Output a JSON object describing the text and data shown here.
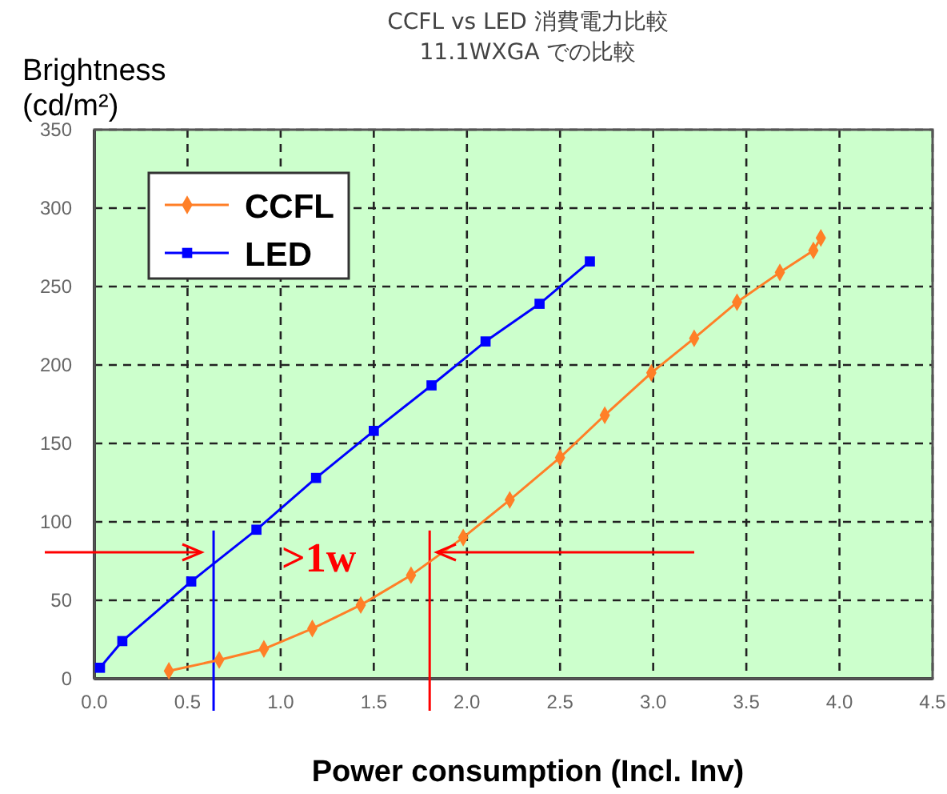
{
  "chart_data": {
    "type": "line",
    "title": "CCFL vs LED 消費電力比較",
    "subtitle": "11.1WXGA での比較",
    "xlabel": "Power consumption (Incl. Inv)",
    "ylabel": "Brightness (cd/m²)",
    "xlim": [
      0,
      4.5
    ],
    "ylim": [
      0,
      350
    ],
    "xticks": [
      {
        "value": 0,
        "label": "0.0"
      },
      {
        "value": 0.5,
        "label": "0.5"
      },
      {
        "value": 1,
        "label": "1.0"
      },
      {
        "value": 1.5,
        "label": "1.5"
      },
      {
        "value": 2,
        "label": "2.0"
      },
      {
        "value": 2.5,
        "label": "2.5"
      },
      {
        "value": 3,
        "label": "3.0"
      },
      {
        "value": 3.5,
        "label": "3.5"
      },
      {
        "value": 4,
        "label": "4.0"
      },
      {
        "value": 4.5,
        "label": "4.5"
      }
    ],
    "yticks": [
      0,
      50,
      100,
      150,
      200,
      250,
      300,
      350
    ],
    "grid": true,
    "legend": "top left",
    "line_style": "solid",
    "series": [
      {
        "name": "CCFL",
        "color": "#ff7f27",
        "marker": "diamond",
        "x": [
          0.4,
          0.67,
          0.91,
          1.17,
          1.43,
          1.7,
          1.98,
          2.23,
          2.5,
          2.74,
          2.99,
          3.22,
          3.45,
          3.68,
          3.86,
          3.9
        ],
        "values": [
          5,
          12,
          19,
          32,
          47,
          66,
          90,
          114,
          141,
          168,
          195,
          217,
          240,
          259,
          273,
          281
        ]
      },
      {
        "name": "LED",
        "color": "#0000ff",
        "marker": "square",
        "x": [
          0.03,
          0.15,
          0.52,
          0.87,
          1.19,
          1.5,
          1.81,
          2.1,
          2.39,
          2.66
        ],
        "values": [
          7,
          24,
          62,
          95,
          128,
          158,
          187,
          215,
          239,
          266
        ]
      }
    ],
    "ref_lines": [
      {
        "axis": "x",
        "value": 0.64,
        "color": "#0000ff"
      },
      {
        "axis": "x",
        "value": 1.8,
        "color": "#ff0000"
      }
    ],
    "annotations": [
      ">1w"
    ]
  }
}
